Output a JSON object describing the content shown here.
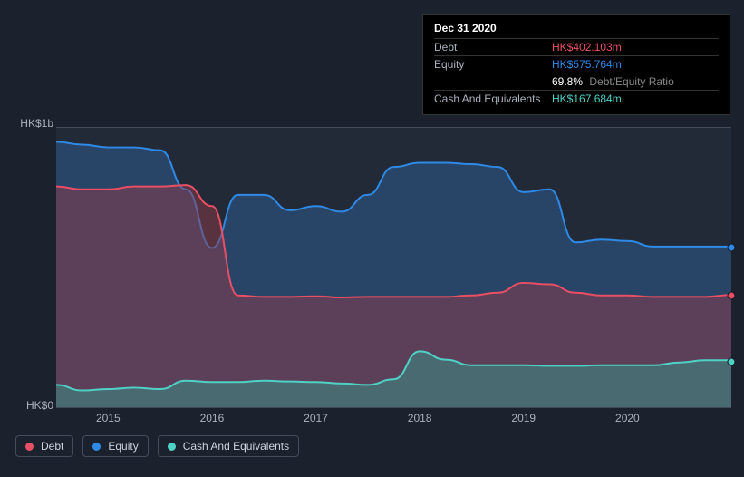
{
  "tooltip": {
    "date": "Dec 31 2020",
    "rows": [
      {
        "label": "Debt",
        "value": "HK$402.103m",
        "color": "#e94f64"
      },
      {
        "label": "Equity",
        "value": "HK$575.764m",
        "color": "#2e8ae6"
      },
      {
        "label": "",
        "value": "69.8%",
        "sub": "Debt/Equity Ratio",
        "color": "#ffffff"
      },
      {
        "label": "Cash And Equivalents",
        "value": "HK$167.684m",
        "color": "#4fd1c5"
      }
    ]
  },
  "chart": {
    "type": "area",
    "background_color": "#222a37",
    "page_background": "#1b222d",
    "grid_border_color": "#444c5a",
    "y_axis": {
      "min": 0,
      "max": 1000,
      "ticks": [
        {
          "v": 1000,
          "label": "HK$1b"
        },
        {
          "v": 0,
          "label": "HK$0"
        }
      ],
      "label_fontsize": 12,
      "label_color": "#aab2bd"
    },
    "x_axis": {
      "min": 0,
      "max": 26,
      "tick_labels": [
        "2015",
        "2016",
        "2017",
        "2018",
        "2019",
        "2020"
      ],
      "tick_positions": [
        2,
        6,
        10,
        14,
        18,
        22
      ],
      "label_fontsize": 12,
      "label_color": "#aab2bd"
    },
    "series": [
      {
        "name": "Equity",
        "color": "#2e8ae6",
        "fill": "#2e5a8f",
        "fill_opacity": 0.55,
        "line_width": 2,
        "data": [
          950,
          940,
          930,
          930,
          920,
          780,
          570,
          760,
          760,
          705,
          720,
          700,
          760,
          860,
          875,
          875,
          870,
          860,
          770,
          780,
          590,
          600,
          595,
          575,
          575,
          575,
          575
        ]
      },
      {
        "name": "Debt",
        "color": "#e94f64",
        "fill": "#8f3a4a",
        "fill_opacity": 0.5,
        "line_width": 2,
        "data": [
          790,
          780,
          780,
          790,
          790,
          795,
          720,
          400,
          395,
          395,
          397,
          393,
          395,
          395,
          395,
          395,
          400,
          410,
          445,
          440,
          410,
          400,
          400,
          395,
          395,
          395,
          402
        ]
      },
      {
        "name": "Cash And Equivalents",
        "color": "#4fd1c5",
        "fill": "#3a8e86",
        "fill_opacity": 0.55,
        "line_width": 2,
        "data": [
          80,
          60,
          65,
          70,
          65,
          95,
          90,
          90,
          95,
          92,
          90,
          85,
          80,
          100,
          200,
          170,
          150,
          150,
          150,
          148,
          148,
          150,
          150,
          150,
          160,
          168,
          168
        ]
      }
    ],
    "end_markers": true
  },
  "legend": {
    "items": [
      {
        "label": "Debt",
        "color": "#e94f64"
      },
      {
        "label": "Equity",
        "color": "#2e8ae6"
      },
      {
        "label": "Cash And Equivalents",
        "color": "#4fd1c5"
      }
    ],
    "border_color": "#444c5a",
    "text_color": "#ccd4df",
    "fontsize": 12
  }
}
